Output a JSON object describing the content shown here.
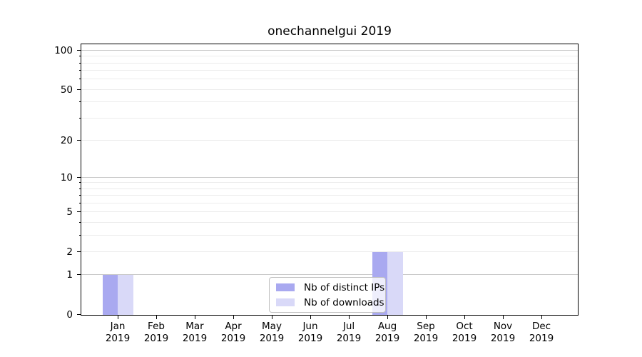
{
  "chart_data": {
    "type": "bar",
    "title": "onechannelgui 2019",
    "categories": [
      {
        "month": "Jan",
        "year": "2019"
      },
      {
        "month": "Feb",
        "year": "2019"
      },
      {
        "month": "Mar",
        "year": "2019"
      },
      {
        "month": "Apr",
        "year": "2019"
      },
      {
        "month": "May",
        "year": "2019"
      },
      {
        "month": "Jun",
        "year": "2019"
      },
      {
        "month": "Jul",
        "year": "2019"
      },
      {
        "month": "Aug",
        "year": "2019"
      },
      {
        "month": "Sep",
        "year": "2019"
      },
      {
        "month": "Oct",
        "year": "2019"
      },
      {
        "month": "Nov",
        "year": "2019"
      },
      {
        "month": "Dec",
        "year": "2019"
      }
    ],
    "series": [
      {
        "name": "Nb of distinct IPs",
        "color": "#a9a9f0",
        "values": [
          1,
          0,
          0,
          0,
          0,
          0,
          0,
          2,
          0,
          0,
          0,
          0
        ]
      },
      {
        "name": "Nb of downloads",
        "color": "#d9d9f8",
        "values": [
          1,
          0,
          0,
          0,
          0,
          0,
          0,
          2,
          0,
          0,
          0,
          0
        ]
      }
    ],
    "yscale": "log1p",
    "ylim": [
      0,
      112
    ],
    "yticks": [
      0,
      1,
      2,
      5,
      10,
      20,
      50,
      100
    ],
    "xlabel": "",
    "ylabel": "",
    "grid": "horizontal major+minor",
    "legend_position": "lower center"
  },
  "colors": {
    "major_grid": "#c9c9c9",
    "minor_grid": "#ececec",
    "axis": "#000000",
    "background": "#ffffff"
  }
}
